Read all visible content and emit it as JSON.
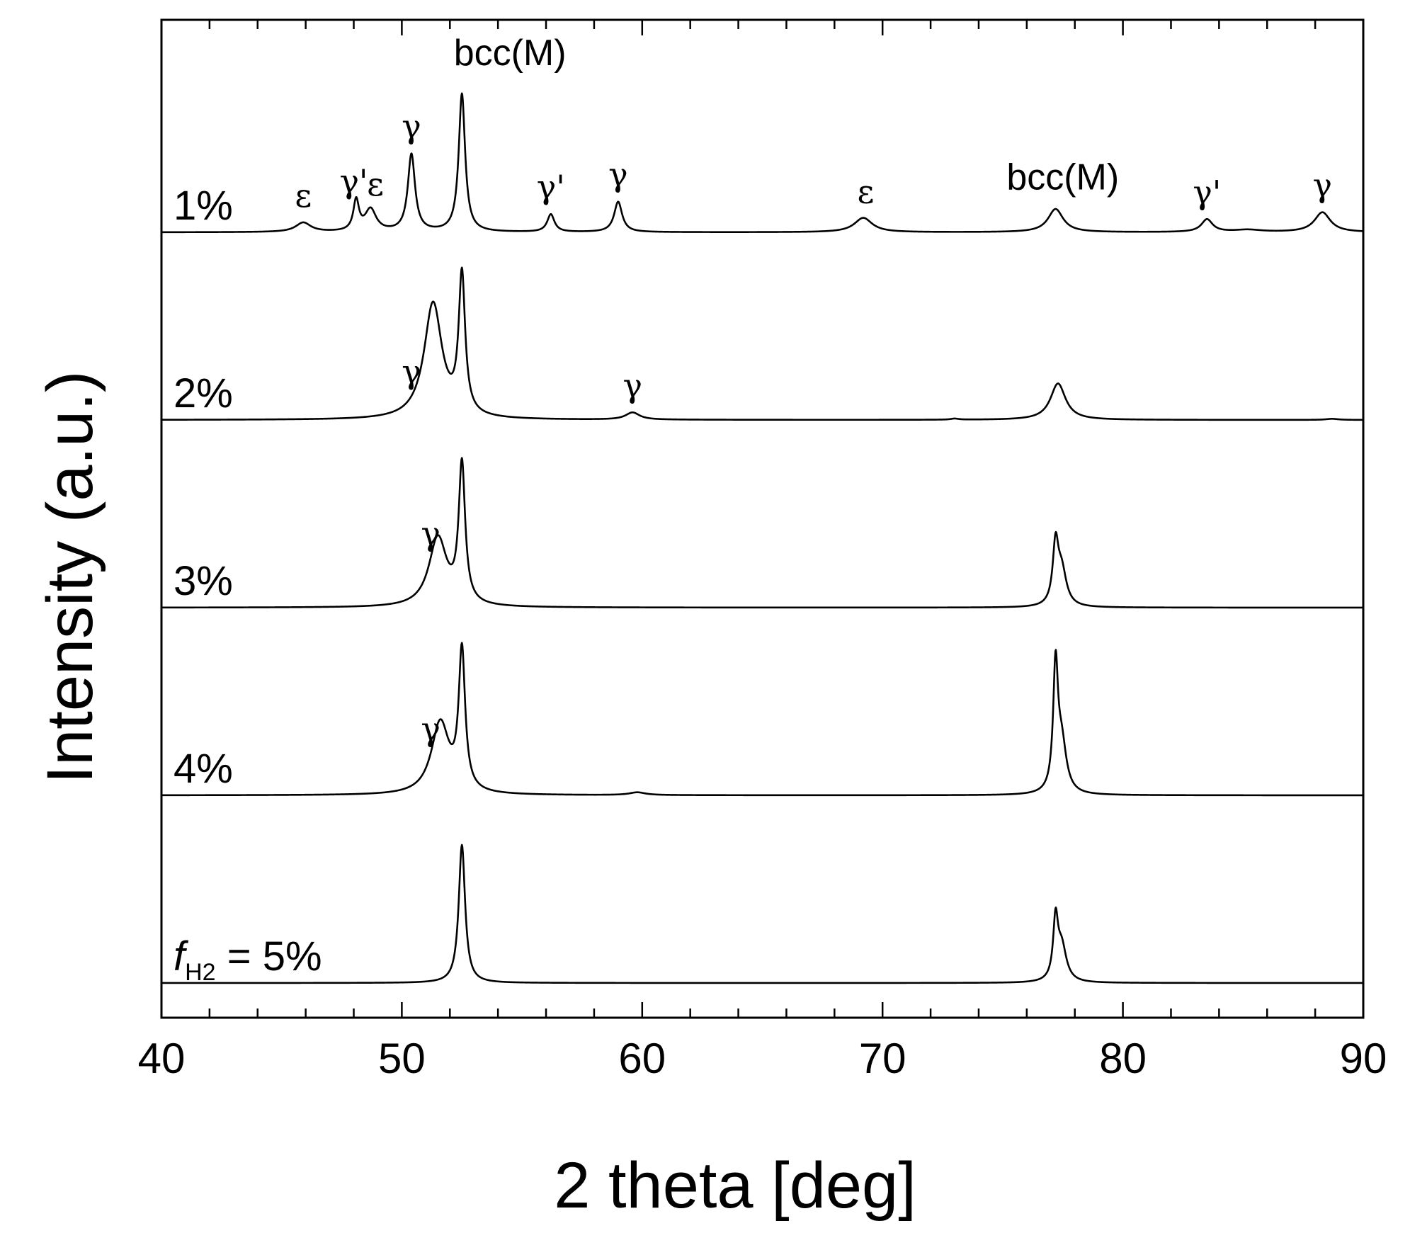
{
  "chart_data": {
    "type": "line",
    "title": "",
    "xlabel": "2 theta [deg]",
    "ylabel": "Intensity (a.u.)",
    "xlim": [
      40,
      90
    ],
    "xticks": [
      40,
      50,
      60,
      70,
      80,
      90
    ],
    "grid": false,
    "legend": "none",
    "series": [
      {
        "name": "1%",
        "label_prefix": "",
        "label_sub": "",
        "label_text": "1%",
        "baseline_offset": 4,
        "peaks": [
          {
            "x": 45.9,
            "h": 0.17,
            "w": 0.38
          },
          {
            "x": 48.1,
            "h": 0.55,
            "w": 0.14
          },
          {
            "x": 48.7,
            "h": 0.4,
            "w": 0.28
          },
          {
            "x": 50.4,
            "h": 1.4,
            "w": 0.18
          },
          {
            "x": 52.5,
            "h": 2.5,
            "w": 0.16
          },
          {
            "x": 56.2,
            "h": 0.32,
            "w": 0.18
          },
          {
            "x": 59.0,
            "h": 0.55,
            "w": 0.2
          },
          {
            "x": 69.2,
            "h": 0.26,
            "w": 0.45
          },
          {
            "x": 77.2,
            "h": 0.42,
            "w": 0.38
          },
          {
            "x": 83.5,
            "h": 0.23,
            "w": 0.28
          },
          {
            "x": 85.2,
            "h": 0.04,
            "w": 0.7
          },
          {
            "x": 88.3,
            "h": 0.36,
            "w": 0.4
          }
        ]
      },
      {
        "name": "2%",
        "label_prefix": "",
        "label_sub": "",
        "label_text": "2%",
        "baseline_offset": 3,
        "peaks": [
          {
            "x": 51.3,
            "h": 2.1,
            "w": 0.45
          },
          {
            "x": 52.5,
            "h": 2.5,
            "w": 0.16
          },
          {
            "x": 59.6,
            "h": 0.13,
            "w": 0.35
          },
          {
            "x": 73.0,
            "h": 0.02,
            "w": 0.2
          },
          {
            "x": 77.3,
            "h": 0.66,
            "w": 0.38
          },
          {
            "x": 88.7,
            "h": 0.02,
            "w": 0.3
          }
        ]
      },
      {
        "name": "3%",
        "label_prefix": "",
        "label_sub": "",
        "label_text": "3%",
        "baseline_offset": 2,
        "peaks": [
          {
            "x": 51.5,
            "h": 1.25,
            "w": 0.45
          },
          {
            "x": 52.5,
            "h": 2.5,
            "w": 0.16
          },
          {
            "x": 77.2,
            "h": 1.05,
            "w": 0.14
          },
          {
            "x": 77.45,
            "h": 0.65,
            "w": 0.24
          }
        ]
      },
      {
        "name": "4%",
        "label_prefix": "",
        "label_sub": "",
        "label_text": "4%",
        "baseline_offset": 1,
        "peaks": [
          {
            "x": 51.6,
            "h": 1.3,
            "w": 0.45
          },
          {
            "x": 52.5,
            "h": 2.5,
            "w": 0.16
          },
          {
            "x": 59.8,
            "h": 0.05,
            "w": 0.4
          },
          {
            "x": 77.2,
            "h": 2.2,
            "w": 0.12
          },
          {
            "x": 77.45,
            "h": 0.9,
            "w": 0.24
          }
        ]
      },
      {
        "name": "fH2 = 5%",
        "label_prefix": "f",
        "label_sub": "H2",
        "label_text": " = 5%",
        "baseline_offset": 0,
        "peaks": [
          {
            "x": 52.5,
            "h": 2.5,
            "w": 0.16
          },
          {
            "x": 77.2,
            "h": 1.05,
            "w": 0.12
          },
          {
            "x": 77.45,
            "h": 0.65,
            "w": 0.24
          }
        ]
      }
    ],
    "annotations": [
      {
        "text": "ε",
        "x": 45.9,
        "series": "1%",
        "style": "greek"
      },
      {
        "text": "γ'",
        "x": 48.0,
        "series": "1%",
        "style": "greek"
      },
      {
        "text": "ε",
        "x": 48.9,
        "series": "1%",
        "style": "greek-low"
      },
      {
        "text": "γ",
        "x": 50.4,
        "series": "1%",
        "style": "greek"
      },
      {
        "text": "bcc(M)",
        "x": 54.5,
        "series": "1%",
        "style": "sans-top"
      },
      {
        "text": "γ'",
        "x": 56.2,
        "series": "1%",
        "style": "greek"
      },
      {
        "text": "γ",
        "x": 59.0,
        "series": "1%",
        "style": "greek"
      },
      {
        "text": "ε",
        "x": 69.3,
        "series": "1%",
        "style": "greek"
      },
      {
        "text": "bcc(M)",
        "x": 77.5,
        "series": "1%",
        "style": "sans"
      },
      {
        "text": "γ'",
        "x": 83.5,
        "series": "1%",
        "style": "greek"
      },
      {
        "text": "γ",
        "x": 88.3,
        "series": "1%",
        "style": "greek"
      },
      {
        "text": "γ",
        "x": 50.4,
        "series": "2%",
        "style": "greek"
      },
      {
        "text": "γ",
        "x": 59.6,
        "series": "2%",
        "style": "greek"
      },
      {
        "text": "γ",
        "x": 51.2,
        "series": "3%",
        "style": "greek"
      },
      {
        "text": "γ",
        "x": 51.2,
        "series": "4%",
        "style": "greek"
      }
    ]
  }
}
